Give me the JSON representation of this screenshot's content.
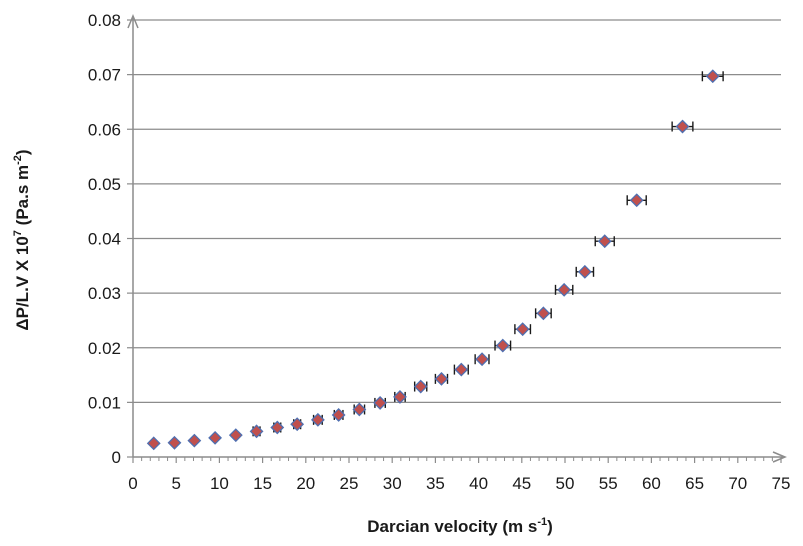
{
  "chart_data": {
    "type": "scatter",
    "title": "",
    "xlabel": "Darcian velocity (m s",
    "xlabel_sup": "-1",
    "xlabel_end": ")",
    "ylabel": "ΔP/L.V X 10",
    "ylabel_sup1": "7",
    "ylabel_mid": " (Pa.s m",
    "ylabel_sup2": "-2",
    "ylabel_end": ")",
    "xlim": [
      0,
      75
    ],
    "ylim": [
      0,
      0.08
    ],
    "xticks": [
      "0",
      "5",
      "10",
      "15",
      "20",
      "25",
      "30",
      "35",
      "40",
      "45",
      "50",
      "55",
      "60",
      "65",
      "70",
      "75"
    ],
    "yticks": [
      "0",
      "0.01",
      "0.02",
      "0.03",
      "0.04",
      "0.05",
      "0.06",
      "0.07",
      "0.08"
    ],
    "grid": "horizontal",
    "legend": "none",
    "marker": "diamond",
    "marker_fill": "#c0504d",
    "marker_edge": "#4f6fb0",
    "errorbar_color": "#1a1a1a",
    "points": [
      {
        "x": 2.4,
        "y": 0.0025,
        "xerr": 0.0
      },
      {
        "x": 4.8,
        "y": 0.0026,
        "xerr": 0.0
      },
      {
        "x": 7.1,
        "y": 0.003,
        "xerr": 0.0
      },
      {
        "x": 9.5,
        "y": 0.0035,
        "xerr": 0.0
      },
      {
        "x": 11.9,
        "y": 0.004,
        "xerr": 0.0
      },
      {
        "x": 14.3,
        "y": 0.0047,
        "xerr": 0.4
      },
      {
        "x": 16.7,
        "y": 0.0054,
        "xerr": 0.4
      },
      {
        "x": 19.0,
        "y": 0.006,
        "xerr": 0.4
      },
      {
        "x": 21.4,
        "y": 0.0068,
        "xerr": 0.5
      },
      {
        "x": 23.8,
        "y": 0.0077,
        "xerr": 0.5
      },
      {
        "x": 26.2,
        "y": 0.0087,
        "xerr": 0.6
      },
      {
        "x": 28.6,
        "y": 0.0099,
        "xerr": 0.6
      },
      {
        "x": 30.9,
        "y": 0.011,
        "xerr": 0.6
      },
      {
        "x": 33.3,
        "y": 0.0129,
        "xerr": 0.7
      },
      {
        "x": 35.7,
        "y": 0.0143,
        "xerr": 0.7
      },
      {
        "x": 38.0,
        "y": 0.016,
        "xerr": 0.8
      },
      {
        "x": 40.4,
        "y": 0.0179,
        "xerr": 0.8
      },
      {
        "x": 42.8,
        "y": 0.0204,
        "xerr": 0.9
      },
      {
        "x": 45.1,
        "y": 0.0234,
        "xerr": 0.9
      },
      {
        "x": 47.5,
        "y": 0.0263,
        "xerr": 0.9
      },
      {
        "x": 49.9,
        "y": 0.0306,
        "xerr": 1.0
      },
      {
        "x": 52.3,
        "y": 0.0339,
        "xerr": 1.0
      },
      {
        "x": 54.6,
        "y": 0.0395,
        "xerr": 1.1
      },
      {
        "x": 58.3,
        "y": 0.047,
        "xerr": 1.1
      },
      {
        "x": 63.6,
        "y": 0.0605,
        "xerr": 1.2
      },
      {
        "x": 67.1,
        "y": 0.0697,
        "xerr": 1.2
      }
    ]
  }
}
